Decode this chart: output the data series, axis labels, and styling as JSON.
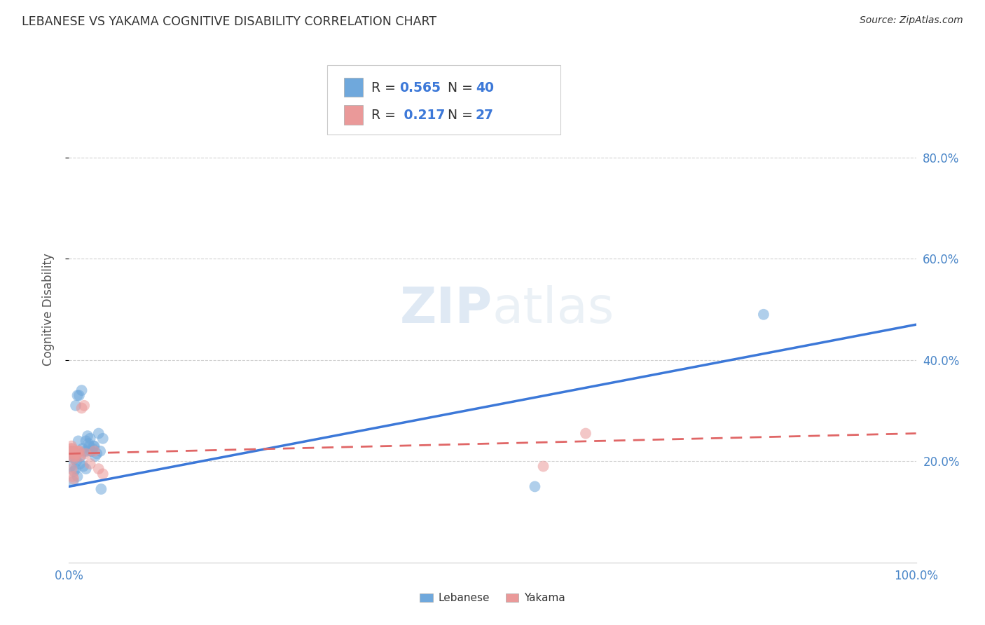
{
  "title": "LEBANESE VS YAKAMA COGNITIVE DISABILITY CORRELATION CHART",
  "source": "Source: ZipAtlas.com",
  "ylabel": "Cognitive Disability",
  "R_lebanese": 0.565,
  "N_lebanese": 40,
  "R_yakama": 0.217,
  "N_yakama": 27,
  "blue_color": "#6fa8dc",
  "pink_color": "#ea9999",
  "blue_line_color": "#3c78d8",
  "pink_line_color": "#e06666",
  "background_color": "#ffffff",
  "watermark_color": "#d0e4f7",
  "grid_color": "#cccccc",
  "tick_color": "#4a86c8",
  "title_color": "#333333",
  "ylabel_color": "#555555",
  "lebanese_x": [
    0.5,
    1.0,
    1.5,
    0.8,
    1.2,
    2.0,
    2.5,
    2.8,
    3.0,
    3.5,
    0.3,
    0.7,
    1.1,
    1.6,
    2.2,
    2.6,
    2.9,
    3.3,
    3.7,
    4.0,
    0.4,
    0.9,
    1.4,
    1.8,
    2.3,
    0.6,
    1.3,
    2.7,
    3.1,
    3.8,
    0.2,
    0.8,
    1.7,
    2.1,
    2.4,
    0.5,
    1.0,
    2.0,
    82.0,
    55.0
  ],
  "lebanese_y": [
    22.0,
    33.0,
    34.0,
    31.0,
    33.0,
    24.0,
    24.5,
    22.5,
    23.0,
    25.5,
    21.0,
    20.5,
    24.0,
    22.5,
    25.0,
    22.0,
    23.0,
    21.5,
    22.0,
    24.5,
    21.5,
    20.0,
    21.0,
    22.0,
    23.5,
    18.0,
    19.5,
    22.0,
    21.0,
    14.5,
    19.0,
    18.5,
    19.0,
    22.0,
    23.0,
    16.0,
    17.0,
    18.5,
    49.0,
    15.0
  ],
  "yakama_x": [
    0.1,
    0.2,
    0.3,
    0.15,
    0.25,
    0.4,
    0.5,
    0.6,
    0.7,
    0.8,
    0.9,
    1.0,
    1.1,
    1.3,
    1.5,
    1.8,
    2.0,
    2.5,
    3.0,
    3.5,
    4.0,
    56.0,
    61.0,
    0.35,
    0.55,
    0.45,
    1.2
  ],
  "yakama_y": [
    22.0,
    22.5,
    23.0,
    21.5,
    22.0,
    22.5,
    21.0,
    20.5,
    21.5,
    21.0,
    22.0,
    21.5,
    22.0,
    21.0,
    30.5,
    31.0,
    21.5,
    19.5,
    22.0,
    18.5,
    17.5,
    19.0,
    25.5,
    18.5,
    16.5,
    17.0,
    22.0
  ],
  "blue_line_start_y": 15.0,
  "blue_line_end_y": 47.0,
  "pink_line_start_y": 21.5,
  "pink_line_end_y": 25.5,
  "xlim": [
    0,
    100
  ],
  "ylim": [
    0,
    100
  ],
  "yticks": [
    20,
    40,
    60,
    80
  ],
  "ytick_labels": [
    "20.0%",
    "40.0%",
    "60.0%",
    "80.0%"
  ],
  "xticks": [
    0,
    100
  ],
  "xtick_labels": [
    "0.0%",
    "100.0%"
  ]
}
